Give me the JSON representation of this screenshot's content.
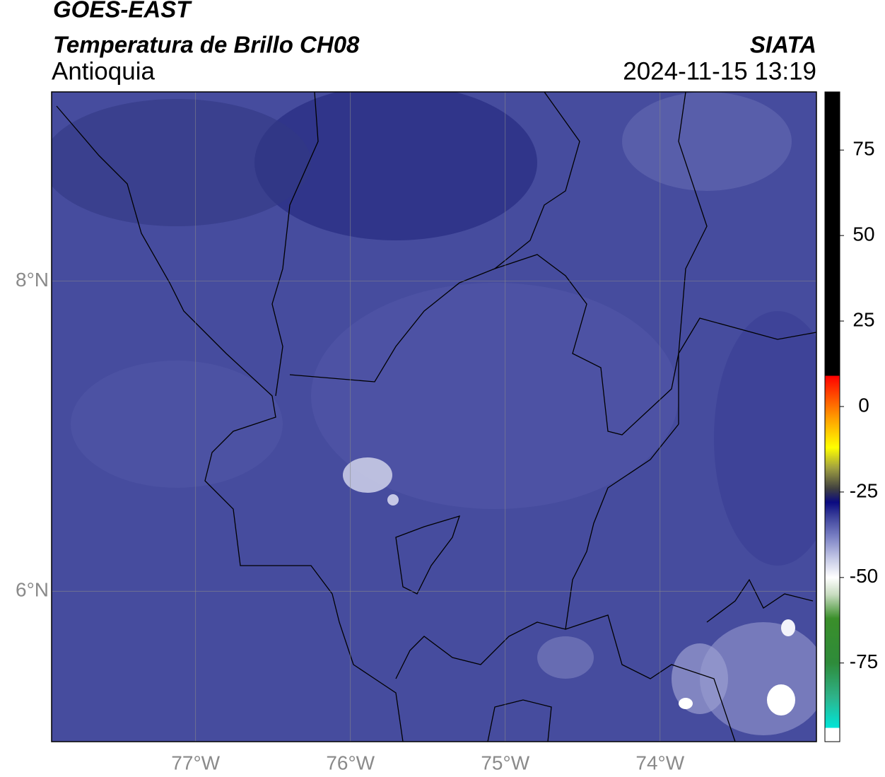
{
  "header": {
    "title": "GOES-EAST",
    "subtitle": "Temperatura de Brillo CH08",
    "region": "Antioquia",
    "source": "SIATA",
    "datetime": "2024-11-15 13:19"
  },
  "map": {
    "xlim": [
      -77.93,
      -72.99
    ],
    "ylim": [
      5.03,
      9.22
    ],
    "xticks": [
      {
        "value": -77,
        "label": "77°W"
      },
      {
        "value": -76,
        "label": "76°W"
      },
      {
        "value": -75,
        "label": "75°W"
      },
      {
        "value": -74,
        "label": "74°W"
      }
    ],
    "yticks": [
      {
        "value": 6,
        "label": "6°N"
      },
      {
        "value": 8,
        "label": "8°N"
      }
    ],
    "grid": true,
    "grid_color": "#8a8a8a"
  },
  "colorbar": {
    "lim": [
      -98,
      92
    ],
    "ticks": [
      75,
      50,
      25,
      0,
      -25,
      -50,
      -75
    ],
    "stops": [
      {
        "value": -98,
        "color": "#ffffff"
      },
      {
        "value": -94,
        "color": "#ffffff"
      },
      {
        "value": -94,
        "color": "#00e5d8"
      },
      {
        "value": -85,
        "color": "#2eb38a"
      },
      {
        "value": -75,
        "color": "#2e8b3a"
      },
      {
        "value": -62,
        "color": "#3a8f2a"
      },
      {
        "value": -55,
        "color": "#c8dcc0"
      },
      {
        "value": -50,
        "color": "#ffffff"
      },
      {
        "value": -44,
        "color": "#c0c4e4"
      },
      {
        "value": -38,
        "color": "#7a80c4"
      },
      {
        "value": -32,
        "color": "#3a3f9a"
      },
      {
        "value": -28,
        "color": "#0a0a80"
      },
      {
        "value": -24,
        "color": "#404040"
      },
      {
        "value": -18,
        "color": "#a0a040"
      },
      {
        "value": -12,
        "color": "#ffff00"
      },
      {
        "value": -4,
        "color": "#ffa500"
      },
      {
        "value": 4,
        "color": "#ff4000"
      },
      {
        "value": 9,
        "color": "#ff0000"
      },
      {
        "value": 9,
        "color": "#000000"
      },
      {
        "value": 92,
        "color": "#000000"
      }
    ]
  }
}
